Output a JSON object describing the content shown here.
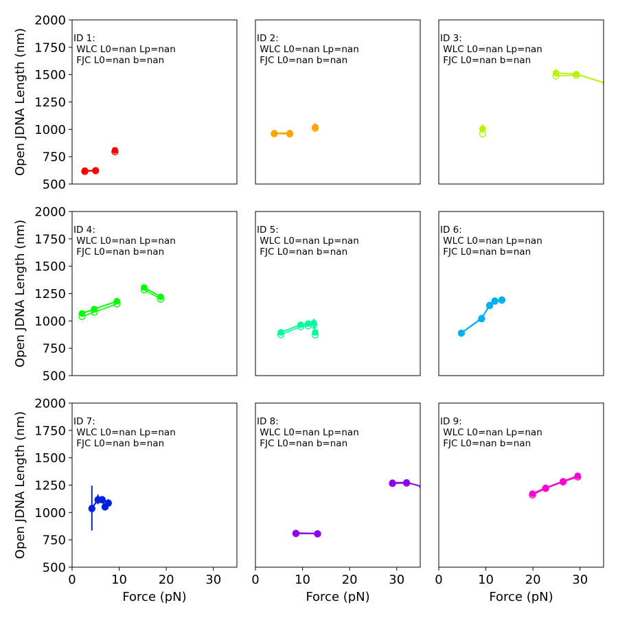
{
  "figure": {
    "ylabel": "Open JDNA Length (nm)",
    "xlabel": "Force (pN)"
  },
  "chart_data": [
    {
      "type": "scatter",
      "panel": "ID 1",
      "annotation": [
        "ID 1:",
        " WLC L0=nan Lp=nan",
        " FJC L0=nan b=nan"
      ],
      "color": "#ff0000",
      "xlim": [
        0,
        35
      ],
      "ylim": [
        500,
        2000
      ],
      "segments": [
        {
          "points": [
            {
              "x": 2.7,
              "y": 622,
              "err": 15
            },
            {
              "x": 5.0,
              "y": 625,
              "err": 15
            }
          ],
          "hollow": [
            {
              "x": 2.7,
              "y": 615
            },
            {
              "x": 5.0,
              "y": 622
            }
          ]
        },
        {
          "points": [
            {
              "x": 9.1,
              "y": 808,
              "err": 20
            }
          ],
          "hollow": [
            {
              "x": 9.1,
              "y": 795
            }
          ]
        }
      ]
    },
    {
      "type": "scatter",
      "panel": "ID 2",
      "annotation": [
        "ID 2:",
        " WLC L0=nan Lp=nan",
        " FJC L0=nan b=nan"
      ],
      "color": "#ffa500",
      "xlim": [
        0,
        35
      ],
      "ylim": [
        500,
        2000
      ],
      "segments": [
        {
          "points": [
            {
              "x": 4.0,
              "y": 965,
              "err": 25
            },
            {
              "x": 7.3,
              "y": 965,
              "err": 30
            }
          ],
          "hollow": [
            {
              "x": 4.0,
              "y": 960
            },
            {
              "x": 7.3,
              "y": 958
            }
          ]
        },
        {
          "points": [
            {
              "x": 12.7,
              "y": 1020,
              "err": 35
            }
          ],
          "hollow": [
            {
              "x": 12.7,
              "y": 1010
            }
          ]
        }
      ]
    },
    {
      "type": "scatter",
      "panel": "ID 3",
      "annotation": [
        "ID 3:",
        " WLC L0=nan Lp=nan",
        " FJC L0=nan b=nan"
      ],
      "color": "#b5f500",
      "xlim": [
        0,
        35
      ],
      "ylim": [
        500,
        2000
      ],
      "segments": [
        {
          "points": [
            {
              "x": 9.3,
              "y": 1005,
              "err": 40
            }
          ],
          "hollow": [
            {
              "x": 9.3,
              "y": 958
            }
          ]
        },
        {
          "points": [
            {
              "x": 24.9,
              "y": 1515,
              "err": 35
            },
            {
              "x": 29.2,
              "y": 1505,
              "err": 25
            },
            {
              "x": 35.5,
              "y": 1420,
              "err": 0
            }
          ],
          "hollow": [
            {
              "x": 24.9,
              "y": 1488
            },
            {
              "x": 29.2,
              "y": 1495
            }
          ]
        }
      ]
    },
    {
      "type": "scatter",
      "panel": "ID 4",
      "annotation": [
        "ID 4:",
        " WLC L0=nan Lp=nan",
        " FJC L0=nan b=nan"
      ],
      "color": "#00ff00",
      "xlim": [
        0,
        35
      ],
      "ylim": [
        500,
        2000
      ],
      "segments": [
        {
          "points": [
            {
              "x": 2.1,
              "y": 1068,
              "err": 15
            },
            {
              "x": 4.7,
              "y": 1108,
              "err": 15
            },
            {
              "x": 9.5,
              "y": 1180,
              "err": 15
            }
          ],
          "hollow": [
            {
              "x": 2.1,
              "y": 1040
            },
            {
              "x": 4.7,
              "y": 1080
            },
            {
              "x": 9.5,
              "y": 1155
            }
          ]
        },
        {
          "points": [
            {
              "x": 15.3,
              "y": 1305,
              "err": 15
            },
            {
              "x": 18.8,
              "y": 1220,
              "err": 15
            }
          ],
          "hollow": [
            {
              "x": 15.3,
              "y": 1285
            },
            {
              "x": 18.8,
              "y": 1200
            }
          ]
        }
      ]
    },
    {
      "type": "scatter",
      "panel": "ID 5",
      "annotation": [
        "ID 5:",
        " WLC L0=nan Lp=nan",
        " FJC L0=nan b=nan"
      ],
      "color": "#00ff9a",
      "xlim": [
        0,
        35
      ],
      "ylim": [
        500,
        2000
      ],
      "segments": [
        {
          "points": [
            {
              "x": 5.4,
              "y": 895,
              "err": 15
            },
            {
              "x": 9.6,
              "y": 965,
              "err": 15
            },
            {
              "x": 11.2,
              "y": 975,
              "err": 15
            },
            {
              "x": 12.4,
              "y": 980,
              "err": 40
            },
            {
              "x": 12.7,
              "y": 895,
              "err": 15
            }
          ],
          "hollow": [
            {
              "x": 5.4,
              "y": 875
            },
            {
              "x": 9.6,
              "y": 948
            },
            {
              "x": 11.2,
              "y": 955
            },
            {
              "x": 12.4,
              "y": 962
            },
            {
              "x": 12.7,
              "y": 872
            }
          ]
        }
      ]
    },
    {
      "type": "scatter",
      "panel": "ID 6",
      "annotation": [
        "ID 6:",
        " WLC L0=nan Lp=nan",
        " FJC L0=nan b=nan"
      ],
      "color": "#00b0f0",
      "xlim": [
        0,
        35
      ],
      "ylim": [
        500,
        2000
      ],
      "segments": [
        {
          "points": [
            {
              "x": 4.8,
              "y": 890,
              "err": 10
            },
            {
              "x": 9.1,
              "y": 1025,
              "err": 15
            },
            {
              "x": 10.8,
              "y": 1145,
              "err": 15
            },
            {
              "x": 11.9,
              "y": 1185,
              "err": 15
            },
            {
              "x": 13.4,
              "y": 1195,
              "err": 15
            }
          ],
          "hollow": [
            {
              "x": 4.8,
              "y": 888
            },
            {
              "x": 9.1,
              "y": 1020
            },
            {
              "x": 10.8,
              "y": 1140
            },
            {
              "x": 11.9,
              "y": 1180
            },
            {
              "x": 13.4,
              "y": 1190
            }
          ]
        }
      ]
    },
    {
      "type": "scatter",
      "panel": "ID 7",
      "annotation": [
        "ID 7:",
        " WLC L0=nan Lp=nan",
        " FJC L0=nan b=nan"
      ],
      "color": "#0022e0",
      "xlim": [
        0,
        35
      ],
      "ylim": [
        500,
        2000
      ],
      "segments": [
        {
          "points": [
            {
              "x": 4.2,
              "y": 1040,
              "err": 205
            },
            {
              "x": 5.5,
              "y": 1120,
              "err": 45
            },
            {
              "x": 6.4,
              "y": 1120,
              "err": 30
            },
            {
              "x": 7.0,
              "y": 1055,
              "err": 30
            },
            {
              "x": 7.7,
              "y": 1090,
              "err": 30
            }
          ],
          "hollow": [
            {
              "x": 4.2,
              "y": 1035
            },
            {
              "x": 5.5,
              "y": 1115
            },
            {
              "x": 6.4,
              "y": 1115
            },
            {
              "x": 7.0,
              "y": 1050
            },
            {
              "x": 7.7,
              "y": 1085
            }
          ]
        }
      ]
    },
    {
      "type": "scatter",
      "panel": "ID 8",
      "annotation": [
        "ID 8:",
        " WLC L0=nan Lp=nan",
        " FJC L0=nan b=nan"
      ],
      "color": "#9000f0",
      "xlim": [
        0,
        35
      ],
      "ylim": [
        500,
        2000
      ],
      "segments": [
        {
          "points": [
            {
              "x": 8.6,
              "y": 812,
              "err": 15
            },
            {
              "x": 13.2,
              "y": 808,
              "err": 20
            }
          ],
          "hollow": [
            {
              "x": 8.6,
              "y": 808
            },
            {
              "x": 13.2,
              "y": 805
            }
          ]
        },
        {
          "points": [
            {
              "x": 29.1,
              "y": 1272,
              "err": 25
            },
            {
              "x": 32.1,
              "y": 1275,
              "err": 25
            },
            {
              "x": 35.5,
              "y": 1235,
              "err": 0
            }
          ],
          "hollow": [
            {
              "x": 29.1,
              "y": 1265
            },
            {
              "x": 32.1,
              "y": 1268
            }
          ]
        }
      ]
    },
    {
      "type": "scatter",
      "panel": "ID 9",
      "annotation": [
        "ID 9:",
        " WLC L0=nan Lp=nan",
        " FJC L0=nan b=nan"
      ],
      "color": "#ff00d0",
      "xlim": [
        0,
        35
      ],
      "ylim": [
        500,
        2000
      ],
      "segments": [
        {
          "points": [
            {
              "x": 19.9,
              "y": 1172,
              "err": 25
            },
            {
              "x": 22.7,
              "y": 1225,
              "err": 15
            },
            {
              "x": 26.4,
              "y": 1285,
              "err": 15
            },
            {
              "x": 29.5,
              "y": 1335,
              "err": 15
            }
          ],
          "hollow": [
            {
              "x": 19.9,
              "y": 1160
            },
            {
              "x": 22.7,
              "y": 1220
            },
            {
              "x": 26.4,
              "y": 1280
            },
            {
              "x": 29.5,
              "y": 1325
            }
          ]
        }
      ]
    }
  ],
  "axes": {
    "yticks": [
      500,
      750,
      1000,
      1250,
      1500,
      1750,
      2000
    ],
    "xticks": [
      0,
      10,
      20,
      30
    ]
  }
}
